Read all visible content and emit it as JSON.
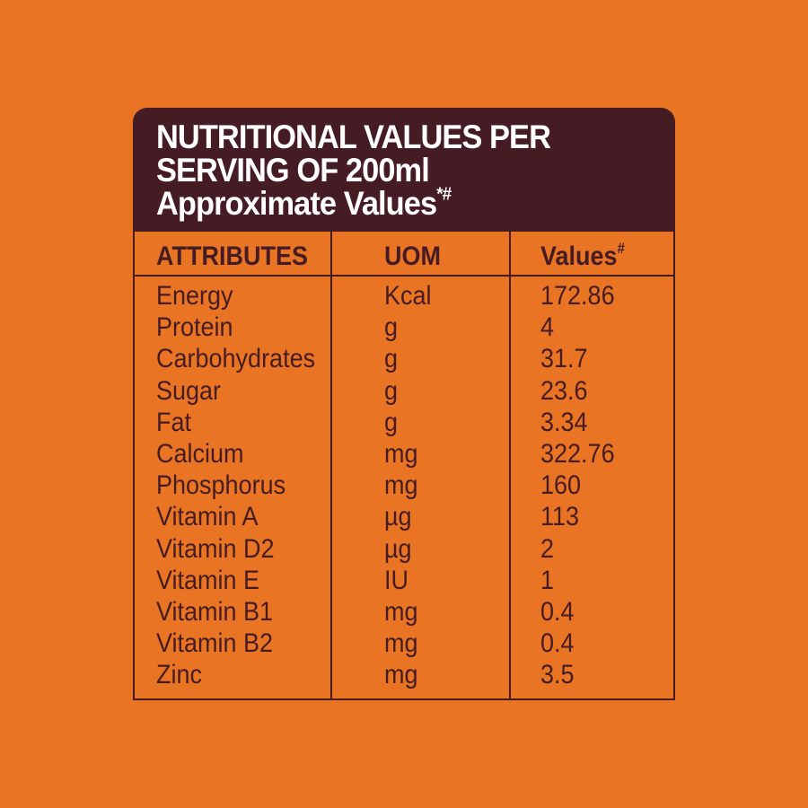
{
  "header": {
    "line1": "NUTRITIONAL VALUES PER",
    "line2": "SERVING OF 200ml",
    "line3": "Approximate Values",
    "line3_mark": "*#"
  },
  "table": {
    "columns": {
      "attributes": "ATTRIBUTES",
      "uom": "UOM",
      "values": "Values",
      "values_mark": "#"
    },
    "rows": [
      {
        "attribute": "Energy",
        "uom": "Kcal",
        "value": "172.86"
      },
      {
        "attribute": "Protein",
        "uom": "g",
        "value": "4"
      },
      {
        "attribute": "Carbohydrates",
        "uom": "g",
        "value": "31.7"
      },
      {
        "attribute": "Sugar",
        "uom": "g",
        "value": "23.6"
      },
      {
        "attribute": "Fat",
        "uom": "g",
        "value": "3.34"
      },
      {
        "attribute": "Calcium",
        "uom": "mg",
        "value": "322.76"
      },
      {
        "attribute": "Phosphorus",
        "uom": "mg",
        "value": "160"
      },
      {
        "attribute": "Vitamin A",
        "uom": "µg",
        "value": "113"
      },
      {
        "attribute": "Vitamin D2",
        "uom": "µg",
        "value": "2"
      },
      {
        "attribute": "Vitamin E",
        "uom": "IU",
        "value": "1"
      },
      {
        "attribute": "Vitamin B1",
        "uom": "mg",
        "value": "0.4"
      },
      {
        "attribute": "Vitamin B2",
        "uom": "mg",
        "value": "0.4"
      },
      {
        "attribute": "Zinc",
        "uom": "mg",
        "value": "3.5"
      }
    ]
  },
  "colors": {
    "background": "#e87424",
    "header": "#461c24",
    "text_light": "#ffffff",
    "text_dark": "#461c24"
  }
}
